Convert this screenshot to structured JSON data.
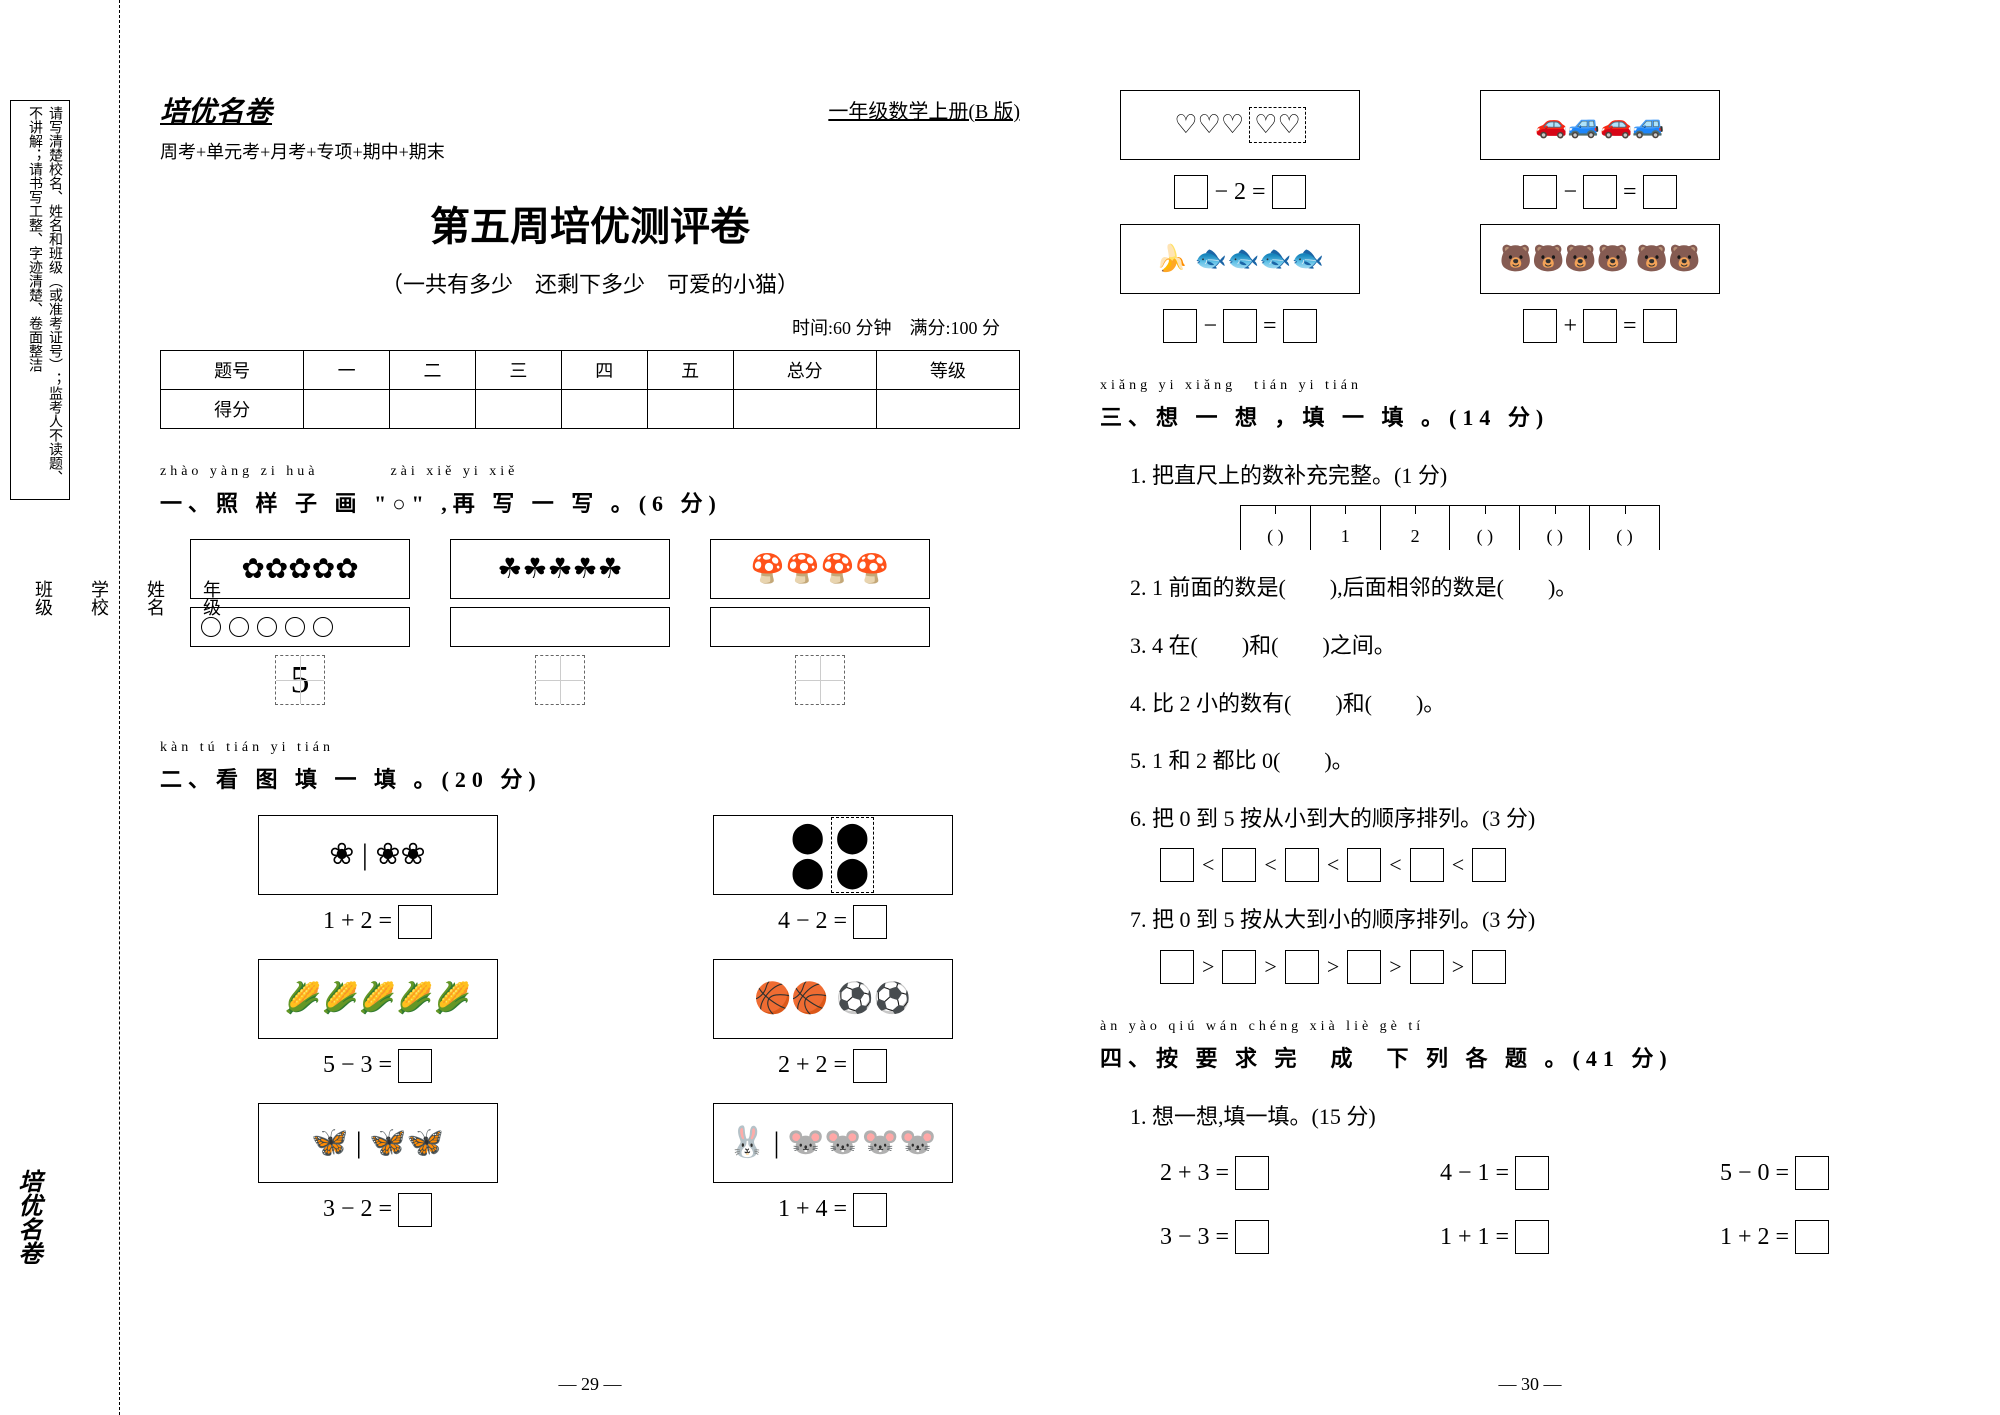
{
  "binding": {
    "notice_lines": "请写清楚校名、姓名和班级（或准考证号）；监考人不读题、不讲解；请书写工整、字迹清楚、卷面整洁",
    "labels": {
      "school": "学校",
      "class": "班级",
      "grade": "年级",
      "name": "姓名"
    },
    "brand": "培优名卷"
  },
  "header": {
    "brand": "培优名卷",
    "grade": "一年级数学上册(B 版)",
    "sub": "周考+单元考+月考+专项+期中+期末"
  },
  "title": {
    "main": "第五周培优测评卷",
    "sub": "（一共有多少　还剩下多少　可爱的小猫）",
    "time": "时间:60 分钟　满分:100 分"
  },
  "score_table": {
    "headers": [
      "题号",
      "一",
      "二",
      "三",
      "四",
      "五",
      "总分",
      "等级"
    ],
    "row2": "得分"
  },
  "section1": {
    "pinyin": "zhào yàng zi huà　　　　zài xiě yi xiě",
    "title": "一、照 样 子 画 \"○\" ,再 写 一 写 。(6 分)",
    "icons": [
      "✿✿✿✿✿",
      "☘☘☘☘☘",
      "🍄🍄🍄🍄"
    ],
    "sample_digit": "5"
  },
  "section2": {
    "pinyin": "kàn tú tián yi tián",
    "title": "二、看 图 填 一 填 。(20 分)",
    "items": [
      {
        "icons": "❀ | ❀❀",
        "eq": "1 + 2 ="
      },
      {
        "icons": "⬤⬤ | ⬤⬤",
        "eq": "4 − 2 =",
        "dashed_right": true
      },
      {
        "icons": "🌽🌽🌽🌽🌽",
        "eq": "5 − 3 ="
      },
      {
        "icons": "🏀🏀 ⚽⚽",
        "eq": "2 + 2 ="
      },
      {
        "icons": "🦋 | 🦋🦋",
        "eq": "3 − 2 ="
      },
      {
        "icons": "🐰 | 🐭🐭🐭🐭",
        "eq": "1 + 4 ="
      }
    ]
  },
  "right_top": {
    "col1": [
      {
        "pic": "♡♡♡ ♡♡",
        "dashed_right": true,
        "eq_pre": "",
        "eq_a": "− 2 ="
      },
      {
        "pic": "🍌 🐟🐟🐟🐟",
        "eq_a": "−",
        "eq_b": "="
      }
    ],
    "col2": [
      {
        "pic": "🚗🚙🚗🚙",
        "eq_a": "−",
        "eq_b": "="
      },
      {
        "pic": "🐻🐻🐻🐻 🐻🐻",
        "eq_a": "+",
        "eq_b": "="
      }
    ]
  },
  "section3": {
    "pinyin": "xiǎng yi xiǎng　tián yi tián",
    "title": "三、想 一 想 ，填 一 填 。(14 分)",
    "q1": "1. 把直尺上的数补充完整。(1 分)",
    "ruler": [
      "( )",
      "1",
      "2",
      "( )",
      "( )",
      "( )"
    ],
    "q2": "2. 1 前面的数是(　　),后面相邻的数是(　　)。",
    "q3": "3. 4 在(　　)和(　　)之间。",
    "q4": "4. 比 2 小的数有(　　)和(　　)。",
    "q5": "5. 1 和 2 都比 0(　　)。",
    "q6": "6. 把 0 到 5 按从小到大的顺序排列。(3 分)",
    "q7": "7. 把 0 到 5 按从大到小的顺序排列。(3 分)",
    "lt": "<",
    "gt": ">"
  },
  "section4": {
    "pinyin": "àn yào qiú wán chéng xià liè gè tí",
    "title": "四、按 要 求 完　成　下 列 各 题 。(41 分)",
    "q1": "1. 想一想,填一填。(15 分)",
    "equations": [
      "2 + 3 =",
      "4 − 1 =",
      "5 − 0 =",
      "3 − 3 =",
      "1 + 1 =",
      "1 + 2 ="
    ]
  },
  "page_numbers": {
    "left": "— 29 —",
    "right": "— 30 —"
  }
}
